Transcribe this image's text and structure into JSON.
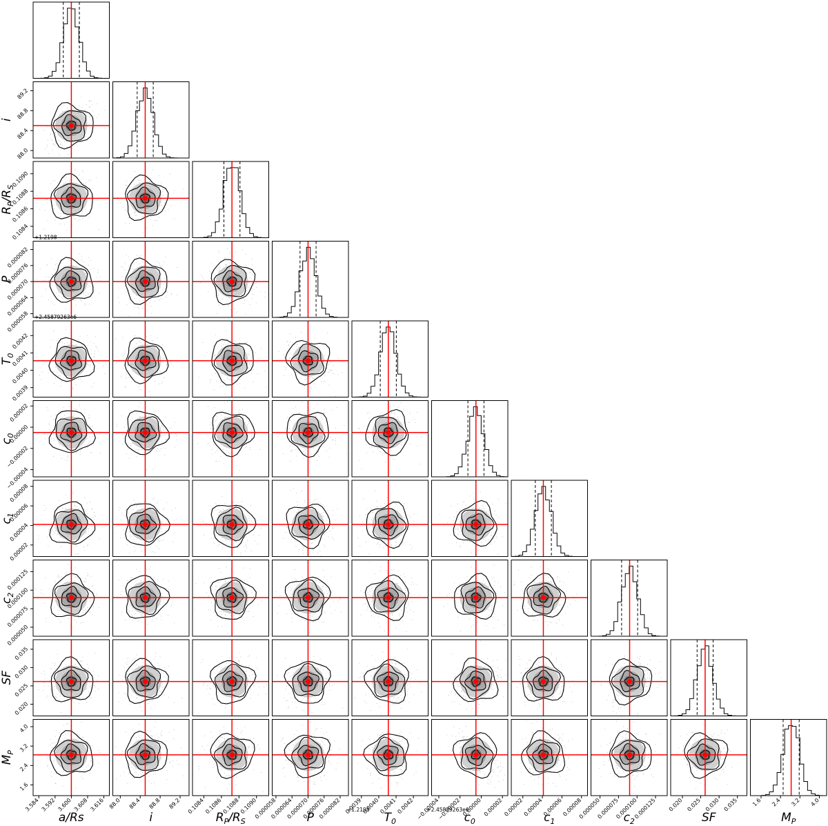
{
  "chart_data": {
    "type": "corner",
    "title": "",
    "parameters": [
      {
        "label": "a/Rs",
        "truth": 3.6,
        "range": [
          3.5812,
          3.6187
        ],
        "ticks": [
          3.584,
          3.592,
          3.6,
          3.608,
          3.616
        ],
        "tick_labels": [
          "3.584",
          "3.592",
          "3.600",
          "3.608",
          "3.616"
        ],
        "offset": ""
      },
      {
        "label": "i",
        "truth": 88.5,
        "range": [
          87.85,
          89.38
        ],
        "ticks": [
          88.0,
          88.4,
          88.8,
          89.2
        ],
        "tick_labels": [
          "88.0",
          "88.4",
          "88.8",
          "89.2"
        ],
        "offset": ""
      },
      {
        "label": "R_P/R_S",
        "truth": 0.10872,
        "range": [
          0.10827,
          0.10914
        ],
        "ticks": [
          0.1084,
          0.1086,
          0.1088,
          0.109
        ],
        "tick_labels": [
          "0.1084",
          "0.1086",
          "0.1088",
          "0.1090"
        ],
        "offset": ""
      },
      {
        "label": "P",
        "truth": 7e-05,
        "range": [
          5.66e-05,
          8.51e-05
        ],
        "ticks": [
          5.8e-05,
          6.4e-05,
          7e-05,
          7.6e-05,
          8.2e-05
        ],
        "tick_labels": [
          "0.000058",
          "0.000064",
          "0.000070",
          "0.000076",
          "0.000082"
        ],
        "offset": "+1.2198"
      },
      {
        "label": "T_0",
        "truth": 0.004055,
        "range": [
          0.003845,
          0.004285
        ],
        "ticks": [
          0.0039,
          0.004,
          0.0041,
          0.0042
        ],
        "tick_labels": [
          "0.0039",
          "0.0040",
          "0.0041",
          "0.0042"
        ],
        "offset": "+2.45879263e6"
      },
      {
        "label": "c_0",
        "truth": -5e-06,
        "range": [
          -4.68e-05,
          2.51e-05
        ],
        "ticks": [
          -4e-05,
          -2e-05,
          0,
          2e-05
        ],
        "tick_labels": [
          "-0.00004",
          "-0.00002",
          "0.00000",
          "0.00002"
        ],
        "offset": ""
      },
      {
        "label": "c_1",
        "truth": 4.1e-05,
        "range": [
          8.2e-06,
          8.62e-05
        ],
        "ticks": [
          2e-05,
          4e-05,
          6e-05,
          8e-05
        ],
        "tick_labels": [
          "0.00002",
          "0.00004",
          "0.00006",
          "0.00008"
        ],
        "offset": ""
      },
      {
        "label": "c_2",
        "truth": 9e-05,
        "range": [
          3.78e-05,
          0.0001408
        ],
        "ticks": [
          5e-05,
          7.5e-05,
          0.0001,
          0.000125
        ],
        "tick_labels": [
          "0.000050",
          "0.000075",
          "0.000100",
          "0.000125"
        ],
        "offset": ""
      },
      {
        "label": "SF",
        "truth": 0.0262,
        "range": [
          0.0168,
          0.0376
        ],
        "ticks": [
          0.02,
          0.025,
          0.03,
          0.035
        ],
        "tick_labels": [
          "0.020",
          "0.025",
          "0.030",
          "0.035"
        ],
        "offset": ""
      },
      {
        "label": "M_P",
        "truth": 2.84,
        "range": [
          1.16,
          4.3
        ],
        "ticks": [
          1.6,
          2.4,
          3.2,
          4.0
        ],
        "tick_labels": [
          "1.6",
          "2.4",
          "3.2",
          "4.0"
        ],
        "offset": ""
      }
    ],
    "quantiles": [
      0.16,
      0.5,
      0.84
    ],
    "colors": {
      "truth": "#ff0000",
      "contour": "#000000",
      "hist": "#000000",
      "quantile": "#000000"
    }
  }
}
